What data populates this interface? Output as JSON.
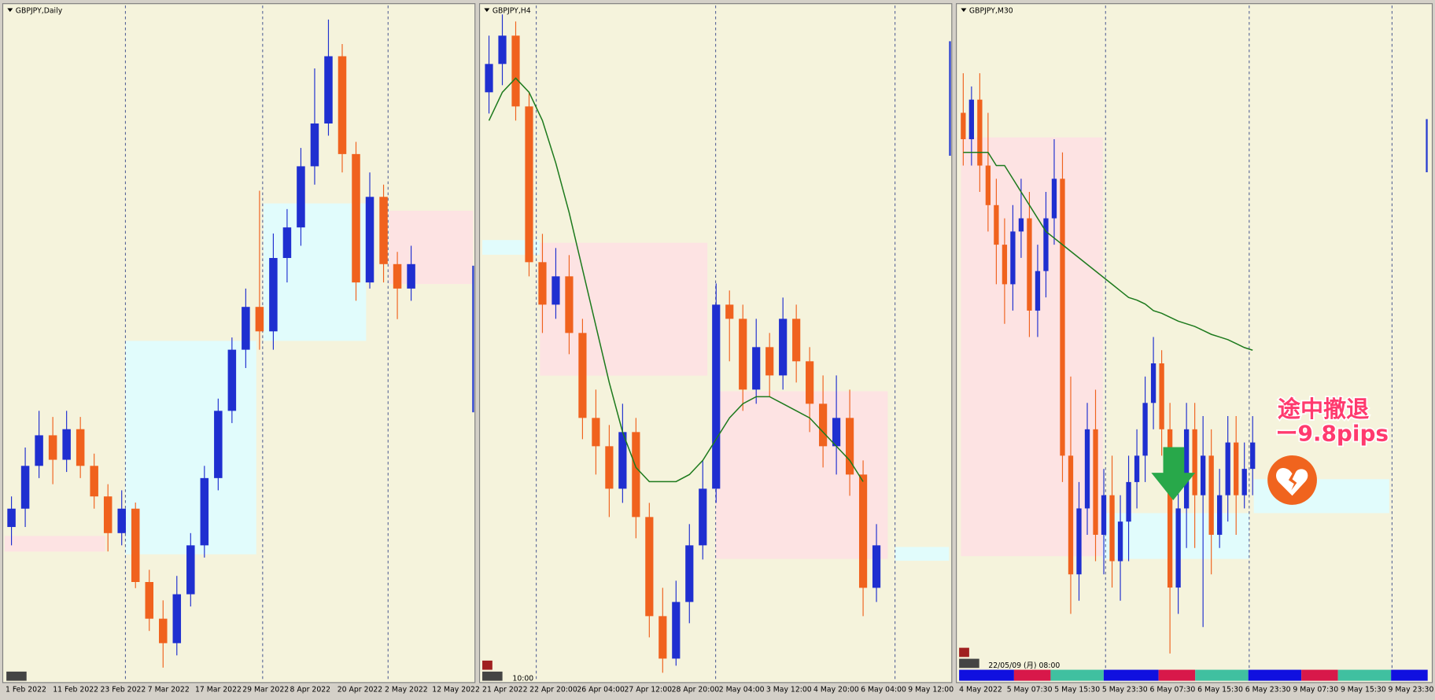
{
  "chart_data": [
    {
      "type": "candlestick",
      "title": "GBPJPY,Daily",
      "ylim": [
        148,
        170
      ],
      "up_color": "#1f2fd0",
      "down_color": "#f0621e",
      "x_labels": [
        "1 Feb 2022",
        "11 Feb 2022",
        "23 Feb 2022",
        "7 Mar 2022",
        "17 Mar 2022",
        "29 Mar 2022",
        "8 Apr 2022",
        "20 Apr 2022",
        "2 May 2022",
        "12 May 2022"
      ],
      "open": [
        153.0,
        153.6,
        155.0,
        156.0,
        155.2,
        156.2,
        155.0,
        154.0,
        152.8,
        153.6,
        151.2,
        150.0,
        149.2,
        150.8,
        152.4,
        154.6,
        156.8,
        158.8,
        160.2,
        159.4,
        161.8,
        162.8,
        164.8,
        166.2,
        168.4,
        165.2,
        161.0,
        163.8,
        161.6,
        160.8
      ],
      "high": [
        154.0,
        155.6,
        156.8,
        156.6,
        156.8,
        156.6,
        155.4,
        154.4,
        154.2,
        153.8,
        151.6,
        150.6,
        151.4,
        152.8,
        155.0,
        157.2,
        159.2,
        160.8,
        164.0,
        162.6,
        163.4,
        165.4,
        168.0,
        169.6,
        168.8,
        165.6,
        164.6,
        164.2,
        162.0,
        162.2
      ],
      "low": [
        152.4,
        153.0,
        154.6,
        154.4,
        154.8,
        154.6,
        153.6,
        152.2,
        152.4,
        151.0,
        149.6,
        148.4,
        148.8,
        150.4,
        152.0,
        154.2,
        156.4,
        158.2,
        158.8,
        158.8,
        161.0,
        162.2,
        164.2,
        165.8,
        164.6,
        160.4,
        160.8,
        161.0,
        159.8,
        160.4
      ],
      "close": [
        153.6,
        155.0,
        156.0,
        155.2,
        156.2,
        155.0,
        154.0,
        152.8,
        153.6,
        151.2,
        150.0,
        149.2,
        150.8,
        152.4,
        154.6,
        156.8,
        158.8,
        160.2,
        159.4,
        161.8,
        162.8,
        164.8,
        166.2,
        168.4,
        165.2,
        161.0,
        163.8,
        161.6,
        160.8,
        161.6
      ]
    },
    {
      "type": "candlestick",
      "title": "GBPJPY,H4",
      "ylim": [
        159.5,
        169
      ],
      "up_color": "#1f2fd0",
      "down_color": "#f0621e",
      "ma_color": "#1d7a1d",
      "cursor_time": "10:00",
      "x_labels": [
        "21 Apr 2022",
        "22 Apr 20:00",
        "26 Apr 04:00",
        "27 Apr 12:00",
        "28 Apr 20:00",
        "2 May 04:00",
        "3 May 12:00",
        "4 May 20:00",
        "6 May 04:00",
        "9 May 12:00"
      ],
      "open": [
        167.8,
        168.2,
        168.6,
        167.6,
        165.4,
        164.8,
        165.2,
        164.4,
        163.2,
        162.8,
        162.2,
        163.0,
        161.8,
        160.4,
        159.8,
        160.6,
        161.4,
        162.2,
        164.8,
        164.6,
        163.6,
        164.2,
        163.8,
        164.6,
        164.0,
        163.4,
        162.8,
        163.2,
        162.4,
        160.8
      ],
      "high": [
        168.6,
        168.9,
        168.8,
        167.8,
        165.8,
        165.6,
        165.5,
        164.6,
        163.6,
        163.1,
        163.4,
        163.2,
        162.0,
        160.8,
        160.9,
        161.7,
        162.6,
        165.1,
        165.0,
        164.8,
        164.6,
        164.4,
        164.9,
        164.8,
        164.2,
        163.8,
        163.8,
        163.6,
        162.6,
        161.7
      ],
      "low": [
        167.5,
        167.9,
        167.4,
        165.2,
        164.4,
        164.6,
        164.1,
        162.9,
        162.4,
        161.8,
        162.0,
        161.5,
        160.1,
        159.6,
        159.7,
        160.3,
        161.2,
        162.0,
        164.0,
        163.3,
        163.4,
        163.5,
        163.6,
        163.7,
        163.0,
        162.5,
        162.4,
        162.1,
        160.4,
        160.6
      ],
      "close": [
        168.2,
        168.6,
        167.6,
        165.4,
        164.8,
        165.2,
        164.4,
        163.2,
        162.8,
        162.2,
        163.0,
        161.8,
        160.4,
        159.8,
        160.6,
        161.4,
        162.2,
        164.8,
        164.6,
        163.6,
        164.2,
        163.8,
        164.6,
        164.0,
        163.4,
        162.8,
        163.2,
        162.4,
        160.8,
        161.4
      ],
      "ma": [
        167.4,
        167.8,
        168.0,
        167.8,
        167.4,
        166.8,
        166.1,
        165.3,
        164.5,
        163.7,
        163.0,
        162.5,
        162.3,
        162.3,
        162.3,
        162.4,
        162.6,
        162.9,
        163.2,
        163.4,
        163.5,
        163.5,
        163.4,
        163.3,
        163.2,
        163.0,
        162.8,
        162.6,
        162.3,
        null
      ]
    },
    {
      "type": "candlestick",
      "title": "GBPJPY,M30",
      "ylim": [
        159.5,
        164.6
      ],
      "up_color": "#1f2fd0",
      "down_color": "#f0621e",
      "ma_color": "#1d7a1d",
      "crosshair_date": "22/05/09 (月) 08:00",
      "annotations": [
        "途中撤退",
        "ー9.8pips"
      ],
      "x_labels": [
        "4 May 2022",
        "5 May 07:30",
        "5 May 15:30",
        "5 May 23:30",
        "6 May 07:30",
        "6 May 15:30",
        "6 May 23:30",
        "9 May 07:30",
        "9 May 15:30",
        "9 May 23:30"
      ],
      "open": [
        163.8,
        163.6,
        163.9,
        163.4,
        163.1,
        162.8,
        162.5,
        162.9,
        163.0,
        162.3,
        162.6,
        163.0,
        163.3,
        161.2,
        160.3,
        160.8,
        161.4,
        160.6,
        160.9,
        160.4,
        160.7,
        161.0,
        161.2,
        161.6,
        161.9,
        161.4,
        160.2,
        160.8,
        161.4,
        160.9,
        161.2,
        160.6,
        160.9,
        161.3,
        160.9,
        161.1
      ],
      "high": [
        164.1,
        164.0,
        164.1,
        163.8,
        163.3,
        163.0,
        163.1,
        163.3,
        163.2,
        162.8,
        163.2,
        163.6,
        163.5,
        161.8,
        161.0,
        161.6,
        161.7,
        161.1,
        161.2,
        160.9,
        161.2,
        161.4,
        161.8,
        162.1,
        162.0,
        161.6,
        161.2,
        161.6,
        161.6,
        161.5,
        161.4,
        161.1,
        161.5,
        161.5,
        161.3,
        161.5
      ],
      "low": [
        163.4,
        163.4,
        163.2,
        162.9,
        162.5,
        162.2,
        162.3,
        162.7,
        162.1,
        162.1,
        162.4,
        162.8,
        161.0,
        160.0,
        160.1,
        160.6,
        160.4,
        160.3,
        160.2,
        160.1,
        160.4,
        160.8,
        161.0,
        161.4,
        161.2,
        159.7,
        160.0,
        160.5,
        160.5,
        159.9,
        160.3,
        160.5,
        160.7,
        160.6,
        160.8,
        160.9
      ],
      "close": [
        163.6,
        163.9,
        163.4,
        163.1,
        162.8,
        162.5,
        162.9,
        163.0,
        162.3,
        162.6,
        163.0,
        163.3,
        161.2,
        160.3,
        160.8,
        161.4,
        160.6,
        160.9,
        160.4,
        160.7,
        161.0,
        161.2,
        161.6,
        161.9,
        161.4,
        160.2,
        160.8,
        161.4,
        160.9,
        161.2,
        160.6,
        160.9,
        161.3,
        160.9,
        161.1,
        161.3
      ],
      "ma": [
        163.5,
        163.5,
        163.5,
        163.5,
        163.4,
        163.4,
        163.3,
        163.2,
        163.1,
        163.0,
        162.9,
        162.85,
        162.8,
        162.75,
        162.7,
        162.65,
        162.6,
        162.55,
        162.5,
        162.45,
        162.4,
        162.38,
        162.35,
        162.3,
        162.28,
        162.25,
        162.22,
        162.2,
        162.18,
        162.15,
        162.12,
        162.1,
        162.08,
        162.05,
        162.02,
        162.0
      ]
    }
  ]
}
